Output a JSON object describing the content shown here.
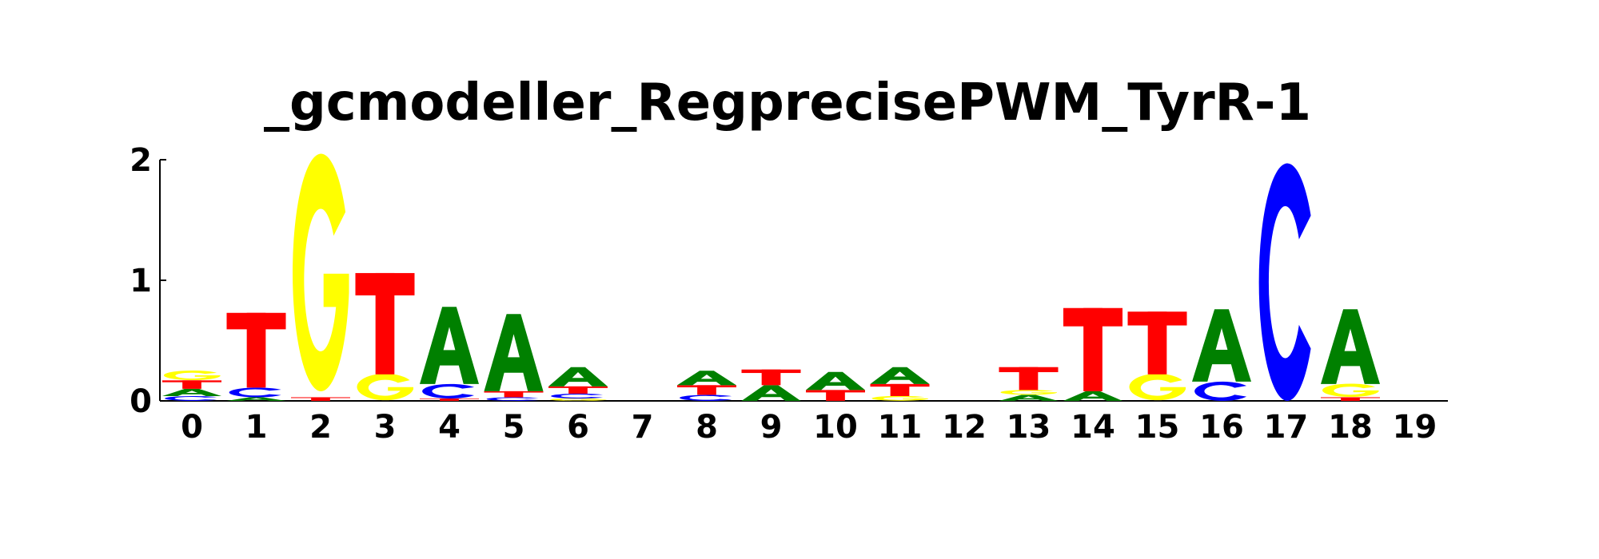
{
  "chart_data": {
    "type": "sequence-logo",
    "title": "_gcmodeller_RegprecisePWM_TyrR-1",
    "xlabel": "",
    "ylabel": "",
    "ylim": [
      0,
      2
    ],
    "yticks": [
      "0",
      "1",
      "2"
    ],
    "colors": {
      "A": "#008000",
      "C": "#0000ff",
      "G": "#ffff00",
      "T": "#ff0000"
    },
    "positions": [
      {
        "label": "0",
        "letters": [
          {
            "base": "C",
            "height": 0.04
          },
          {
            "base": "A",
            "height": 0.06
          },
          {
            "base": "T",
            "height": 0.07
          },
          {
            "base": "G",
            "height": 0.08
          }
        ]
      },
      {
        "label": "1",
        "letters": [
          {
            "base": "A",
            "height": 0.03
          },
          {
            "base": "C",
            "height": 0.08
          },
          {
            "base": "T",
            "height": 0.62
          }
        ]
      },
      {
        "label": "2",
        "letters": [
          {
            "base": "T",
            "height": 0.03
          },
          {
            "base": "G",
            "height": 1.97
          }
        ]
      },
      {
        "label": "3",
        "letters": [
          {
            "base": "G",
            "height": 0.22
          },
          {
            "base": "T",
            "height": 0.84
          }
        ]
      },
      {
        "label": "4",
        "letters": [
          {
            "base": "T",
            "height": 0.02
          },
          {
            "base": "C",
            "height": 0.12
          },
          {
            "base": "A",
            "height": 0.64
          }
        ]
      },
      {
        "label": "5",
        "letters": [
          {
            "base": "C",
            "height": 0.03
          },
          {
            "base": "T",
            "height": 0.05
          },
          {
            "base": "A",
            "height": 0.64
          }
        ]
      },
      {
        "label": "6",
        "letters": [
          {
            "base": "G",
            "height": 0.02
          },
          {
            "base": "C",
            "height": 0.04
          },
          {
            "base": "T",
            "height": 0.06
          },
          {
            "base": "A",
            "height": 0.16
          }
        ]
      },
      {
        "label": "7",
        "letters": []
      },
      {
        "label": "8",
        "letters": [
          {
            "base": "C",
            "height": 0.05
          },
          {
            "base": "T",
            "height": 0.08
          },
          {
            "base": "A",
            "height": 0.12
          }
        ]
      },
      {
        "label": "9",
        "letters": [
          {
            "base": "A",
            "height": 0.13
          },
          {
            "base": "T",
            "height": 0.13
          }
        ]
      },
      {
        "label": "10",
        "letters": [
          {
            "base": "T",
            "height": 0.09
          },
          {
            "base": "A",
            "height": 0.15
          }
        ]
      },
      {
        "label": "11",
        "letters": [
          {
            "base": "G",
            "height": 0.04
          },
          {
            "base": "T",
            "height": 0.1
          },
          {
            "base": "A",
            "height": 0.14
          }
        ]
      },
      {
        "label": "12",
        "letters": []
      },
      {
        "label": "13",
        "letters": [
          {
            "base": "A",
            "height": 0.05
          },
          {
            "base": "G",
            "height": 0.04
          },
          {
            "base": "T",
            "height": 0.19
          }
        ]
      },
      {
        "label": "14",
        "letters": [
          {
            "base": "A",
            "height": 0.08
          },
          {
            "base": "T",
            "height": 0.69
          }
        ]
      },
      {
        "label": "15",
        "letters": [
          {
            "base": "G",
            "height": 0.22
          },
          {
            "base": "T",
            "height": 0.52
          }
        ]
      },
      {
        "label": "16",
        "letters": [
          {
            "base": "C",
            "height": 0.16
          },
          {
            "base": "A",
            "height": 0.6
          }
        ]
      },
      {
        "label": "17",
        "letters": [
          {
            "base": "C",
            "height": 1.97
          }
        ]
      },
      {
        "label": "18",
        "letters": [
          {
            "base": "T",
            "height": 0.03
          },
          {
            "base": "G",
            "height": 0.11
          },
          {
            "base": "A",
            "height": 0.62
          }
        ]
      },
      {
        "label": "19",
        "letters": []
      }
    ]
  }
}
